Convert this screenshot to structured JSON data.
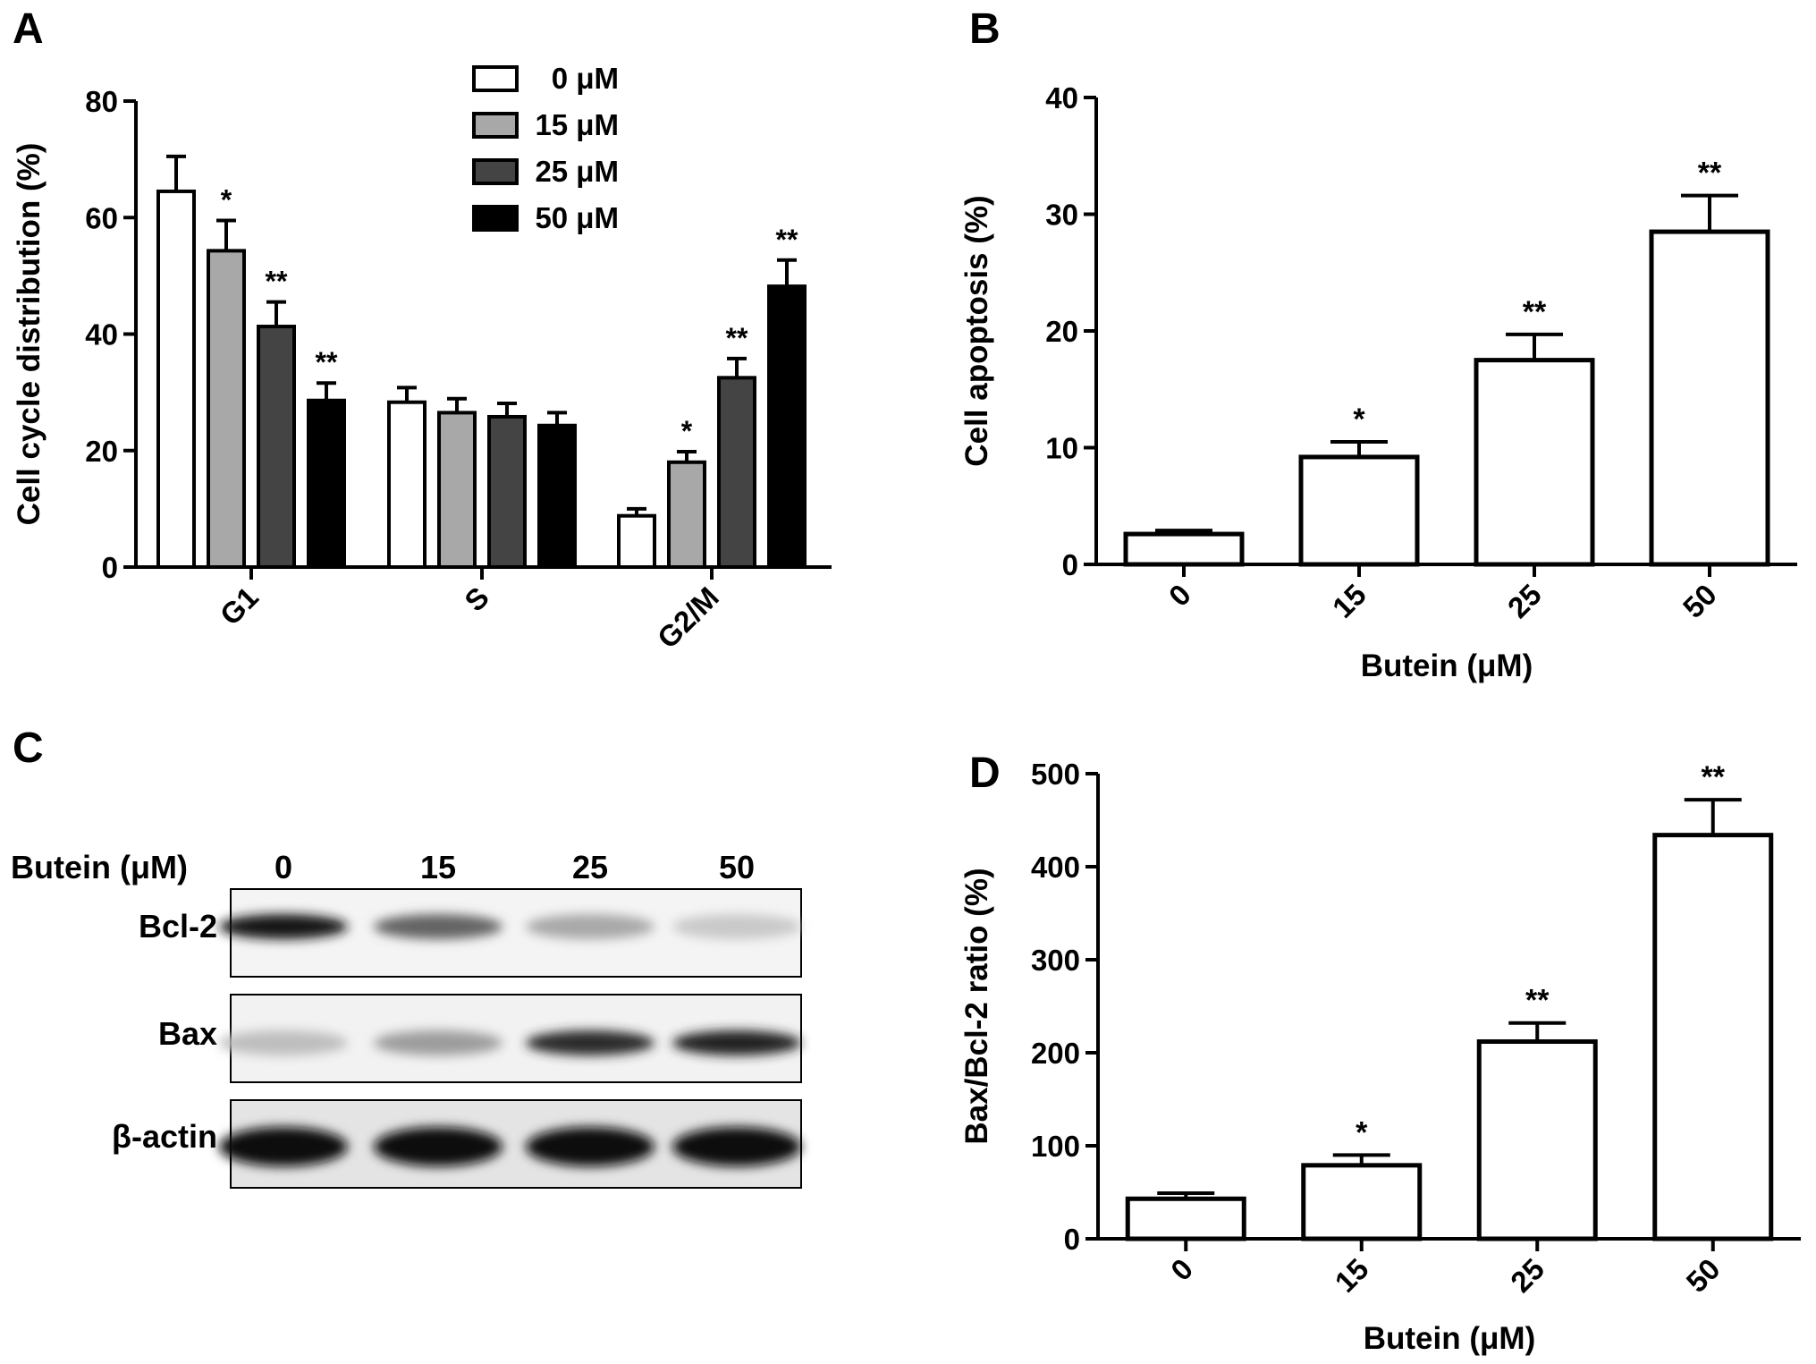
{
  "chart_data": [
    {
      "panel": "A",
      "type": "bar",
      "categories": [
        "G1",
        "S",
        "G2/M"
      ],
      "series": [
        {
          "name": "0 μM",
          "values": [
            64.5,
            28.3,
            8.8
          ],
          "errors": [
            6.0,
            2.5,
            1.2
          ],
          "sig": [
            "",
            "",
            ""
          ],
          "color": "#ffffff"
        },
        {
          "name": "15 μM",
          "values": [
            54.3,
            26.5,
            18.0
          ],
          "errors": [
            5.2,
            2.4,
            1.8
          ],
          "sig": [
            "*",
            "",
            "*"
          ],
          "color": "#a8a8a8"
        },
        {
          "name": "25 μM",
          "values": [
            41.3,
            25.8,
            32.5
          ],
          "errors": [
            4.2,
            2.3,
            3.3
          ],
          "sig": [
            "**",
            "",
            "**"
          ],
          "color": "#444444"
        },
        {
          "name": "50 μM",
          "values": [
            28.6,
            24.3,
            48.2
          ],
          "errors": [
            3.0,
            2.2,
            4.5
          ],
          "sig": [
            "**",
            "",
            "**"
          ],
          "color": "#000000"
        }
      ],
      "xlabel": "",
      "ylabel": "Cell cycle distribution (%)",
      "ylim": [
        0,
        80
      ],
      "yticks": [
        0,
        20,
        40,
        60,
        80
      ],
      "legend_position": "top-right"
    },
    {
      "panel": "B",
      "type": "bar",
      "categories": [
        "0",
        "15",
        "25",
        "50"
      ],
      "values": [
        2.6,
        9.2,
        17.5,
        28.5
      ],
      "errors": [
        0.3,
        1.3,
        2.2,
        3.1
      ],
      "sig": [
        "",
        "*",
        "**",
        "**"
      ],
      "xlabel": "Butein (μM)",
      "ylabel": "Cell apoptosis (%)",
      "ylim": [
        0,
        40
      ],
      "yticks": [
        0,
        10,
        20,
        30,
        40
      ]
    },
    {
      "panel": "D",
      "type": "bar",
      "categories": [
        "0",
        "15",
        "25",
        "50"
      ],
      "values": [
        43,
        79,
        212,
        434
      ],
      "errors": [
        6,
        11,
        20,
        38
      ],
      "sig": [
        "",
        "*",
        "**",
        "**"
      ],
      "xlabel": "Butein (μM)",
      "ylabel": "Bax/Bcl-2 ratio (%)",
      "ylim": [
        0,
        500
      ],
      "yticks": [
        0,
        100,
        200,
        300,
        400,
        500
      ]
    }
  ],
  "panel_labels": [
    "A",
    "B",
    "C",
    "D"
  ],
  "western_blot": {
    "header_label": "Butein (μM)",
    "lanes": [
      "0",
      "15",
      "25",
      "50"
    ],
    "rows": [
      {
        "label": "Bcl-2",
        "intensity": [
          0.95,
          0.6,
          0.3,
          0.15
        ]
      },
      {
        "label": "Bax",
        "intensity": [
          0.2,
          0.35,
          0.85,
          0.9
        ]
      },
      {
        "label": "β-actin",
        "intensity": [
          1.0,
          1.0,
          1.0,
          1.0
        ]
      }
    ]
  }
}
